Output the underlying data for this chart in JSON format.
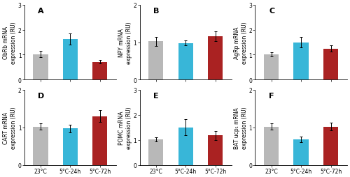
{
  "panels": [
    {
      "label": "A",
      "ylabel": "ObRb mRNA\nexpression (RU)",
      "ylim": [
        0.0,
        3.0
      ],
      "yticks": [
        0.0,
        1.0,
        2.0,
        3.0
      ],
      "values": [
        1.02,
        1.62,
        0.72
      ],
      "errors": [
        0.12,
        0.22,
        0.08
      ]
    },
    {
      "label": "B",
      "ylabel": "NPY mRNA\nexpression (RU)",
      "ylim": [
        0.0,
        2.0
      ],
      "yticks": [
        0.0,
        1.0,
        2.0
      ],
      "values": [
        1.02,
        0.98,
        1.15
      ],
      "errors": [
        0.12,
        0.07,
        0.13
      ]
    },
    {
      "label": "C",
      "ylabel": "AgRp mRNA\nexpression (RU)",
      "ylim": [
        0.0,
        3.0
      ],
      "yticks": [
        0.0,
        1.0,
        2.0,
        3.0
      ],
      "values": [
        1.02,
        1.5,
        1.25
      ],
      "errors": [
        0.08,
        0.2,
        0.12
      ]
    },
    {
      "label": "D",
      "ylabel": "CART mRNA\nexpression (RU)",
      "ylim": [
        0.0,
        2.0
      ],
      "yticks": [
        0.0,
        1.0,
        2.0
      ],
      "values": [
        1.02,
        0.97,
        1.3
      ],
      "errors": [
        0.08,
        0.1,
        0.16
      ]
    },
    {
      "label": "E",
      "ylabel": "POMC mRNA\nexpression (RU)",
      "ylim": [
        0.0,
        3.0
      ],
      "yticks": [
        0.0,
        1.0,
        2.0,
        3.0
      ],
      "values": [
        1.02,
        1.5,
        1.18
      ],
      "errors": [
        0.08,
        0.32,
        0.18
      ]
    },
    {
      "label": "F",
      "ylabel": "BAT ucp₁ mRNA\nexpression (RU)",
      "ylim": [
        0.0,
        2.0
      ],
      "yticks": [
        0.0,
        1.0,
        2.0
      ],
      "values": [
        1.02,
        0.68,
        1.02
      ],
      "errors": [
        0.08,
        0.08,
        0.1
      ]
    }
  ],
  "categories": [
    "23°C",
    "5°C-24h",
    "5°C-72h"
  ],
  "bar_colors": [
    "#b8b8b8",
    "#38b6d8",
    "#aa2222"
  ],
  "bar_width": 0.5,
  "background_color": "#ffffff",
  "tick_fontsize": 5.5,
  "label_fontsize": 5.5,
  "panel_label_fontsize": 8,
  "error_capsize": 1.5,
  "error_lw": 0.7,
  "error_capthick": 0.7
}
